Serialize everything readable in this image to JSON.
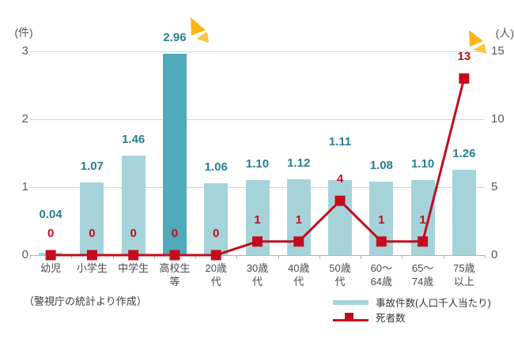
{
  "axes": {
    "left_unit": "(件)",
    "right_unit": "(人)"
  },
  "footer": {
    "source_note": "（警視庁の統計より作成）"
  },
  "legend": {
    "accidents_label": "事故件数(人口千人当たり)",
    "deaths_label": "死者数"
  },
  "colors": {
    "bar": "#a6d3da",
    "bar_highlight": "#4fabbc",
    "bar_label_text": "#26808f",
    "line": "#c30d1e",
    "line_label_text": "#c30d1e",
    "grid": "#d4d4d4",
    "axis_text": "#595959",
    "accent_arrow": "#fcb515",
    "accent_arrow_light": "#fdc53a"
  },
  "chart_data": {
    "type": "bar+line combo",
    "categories_lines": [
      [
        "幼児"
      ],
      [
        "小学生"
      ],
      [
        "中学生"
      ],
      [
        "高校生",
        "等"
      ],
      [
        "20歳",
        "代"
      ],
      [
        "30歳",
        "代"
      ],
      [
        "40歳",
        "代"
      ],
      [
        "50歳",
        "代"
      ],
      [
        "60〜",
        "64歳"
      ],
      [
        "65〜",
        "74歳"
      ],
      [
        "75歳",
        "以上"
      ]
    ],
    "series": [
      {
        "name": "事故件数(人口千人当たり)",
        "type": "bar",
        "axis": "left",
        "values": [
          0.04,
          1.07,
          1.46,
          2.96,
          1.06,
          1.1,
          1.12,
          1.11,
          1.08,
          1.1,
          1.26
        ],
        "labels": [
          "0.04",
          "1.07",
          "1.46",
          "2.96",
          "1.06",
          "1.10",
          "1.12",
          "1.11",
          "1.08",
          "1.10",
          "1.26"
        ],
        "highlight_index": 3,
        "label_lift": [
          28,
          0,
          0,
          0,
          0,
          0,
          0,
          28,
          0,
          0,
          0
        ]
      },
      {
        "name": "死者数",
        "type": "line",
        "axis": "right",
        "values": [
          0,
          0,
          0,
          0,
          0,
          1,
          1,
          4,
          1,
          1,
          13
        ],
        "labels": [
          "0",
          "0",
          "0",
          "0",
          "0",
          "1",
          "1",
          "4",
          "1",
          "1",
          "13"
        ]
      }
    ],
    "left_axis": {
      "label": "(件)",
      "range": [
        0,
        3
      ],
      "ticks": [
        0,
        1,
        2,
        3
      ]
    },
    "right_axis": {
      "label": "(人)",
      "range": [
        0,
        15
      ],
      "ticks": [
        0,
        5,
        10,
        15
      ]
    },
    "grid": "horizontal only",
    "legend_position": "bottom-right",
    "title": ""
  }
}
